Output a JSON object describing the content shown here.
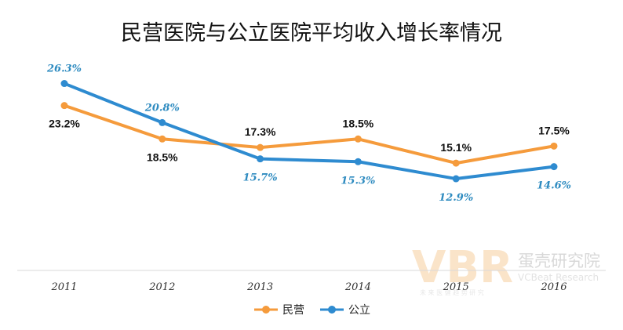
{
  "chart_data": {
    "type": "line",
    "title": "民营医院与公立医院平均收入增长率情况",
    "categories": [
      "2011",
      "2012",
      "2013",
      "2014",
      "2015",
      "2016"
    ],
    "ylim": [
      0,
      30
    ],
    "series": [
      {
        "name": "民营",
        "color": "#f59b3c",
        "values": [
          23.2,
          18.5,
          17.3,
          18.5,
          15.1,
          17.5
        ],
        "labels": [
          "23.2%",
          "18.5%",
          "17.3%",
          "18.5%",
          "15.1%",
          "17.5%"
        ],
        "label_pos": [
          "below",
          "below",
          "above",
          "above",
          "above",
          "above"
        ]
      },
      {
        "name": "公立",
        "color": "#2e8bd0",
        "values": [
          26.3,
          20.8,
          15.7,
          15.3,
          12.9,
          14.6
        ],
        "labels": [
          "26.3%",
          "20.8%",
          "15.7%",
          "15.3%",
          "12.9%",
          "14.6%"
        ],
        "label_pos": [
          "above",
          "above",
          "below",
          "below",
          "below",
          "below"
        ]
      }
    ],
    "legend": "bottom-center",
    "grid": false
  },
  "watermark": {
    "logo_text": "VBR",
    "cn_name": "蛋壳研究院",
    "en_name": "VCBeat Research",
    "tagline": "未 来 医 健 趋 势 研 究"
  }
}
